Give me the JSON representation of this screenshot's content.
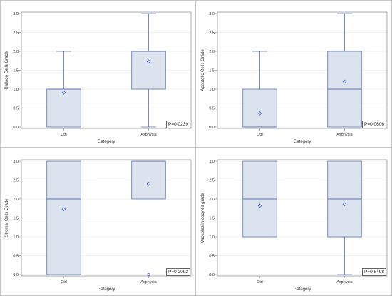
{
  "chart_data": [
    {
      "type": "box",
      "categories": [
        "Ctrl",
        "Asphyxia"
      ],
      "xlabel": "Gategory",
      "ylabel": "Balloon Cells Grade",
      "ylim": [
        0,
        3
      ],
      "yticks": [
        "0.0",
        "0.5",
        "1.0",
        "1.5",
        "2.0",
        "2.5",
        "3.0"
      ],
      "grid": true,
      "boxes": [
        {
          "category": "Ctrl",
          "min": 0,
          "q1": 0,
          "median": 1,
          "q3": 1,
          "max": 2,
          "mean": 0.91,
          "outliers": []
        },
        {
          "category": "Asphyxia",
          "min": 0,
          "q1": 1,
          "median": 2,
          "q3": 2,
          "max": 3,
          "mean": 1.73,
          "outliers": []
        }
      ],
      "annotation": "P=0.0239"
    },
    {
      "type": "box",
      "categories": [
        "Ctrl",
        "Asphyxia"
      ],
      "xlabel": "Gategory",
      "ylabel": "Apoptotic Cells Grade",
      "ylim": [
        0,
        3
      ],
      "yticks": [
        "0.0",
        "0.5",
        "1.0",
        "1.5",
        "2.0",
        "2.5",
        "3.0"
      ],
      "grid": true,
      "boxes": [
        {
          "category": "Ctrl",
          "min": 0,
          "q1": 0,
          "median": 0,
          "q3": 1,
          "max": 2,
          "mean": 0.36,
          "outliers": []
        },
        {
          "category": "Asphyxia",
          "min": 0,
          "q1": 0,
          "median": 1,
          "q3": 2,
          "max": 3,
          "mean": 1.2,
          "outliers": []
        }
      ],
      "annotation": "P=0.0606"
    },
    {
      "type": "box",
      "categories": [
        "Ctrl",
        "Asphyxia"
      ],
      "xlabel": "Gategory",
      "ylabel": "Stromal Cells Grade",
      "ylim": [
        0,
        3
      ],
      "yticks": [
        "0.0",
        "0.5",
        "1.0",
        "1.5",
        "2.0",
        "2.5",
        "3.0"
      ],
      "grid": true,
      "boxes": [
        {
          "category": "Ctrl",
          "min": 0,
          "q1": 0,
          "median": 2,
          "q3": 3,
          "max": 3,
          "mean": 1.73,
          "outliers": []
        },
        {
          "category": "Asphyxia",
          "min": 2,
          "q1": 2,
          "median": 3,
          "q3": 3,
          "max": 3,
          "mean": 2.4,
          "outliers": [
            0
          ]
        }
      ],
      "annotation": "P=0.2092"
    },
    {
      "type": "box",
      "categories": [
        "Ctrl",
        "Asphyxia"
      ],
      "xlabel": "Gategory",
      "ylabel": "Vacuoles in oocytes grade",
      "ylim": [
        0,
        3
      ],
      "yticks": [
        "0.0",
        "0.5",
        "1.0",
        "1.5",
        "2.0",
        "2.5",
        "3.0"
      ],
      "grid": true,
      "boxes": [
        {
          "category": "Ctrl",
          "min": 1,
          "q1": 1,
          "median": 2,
          "q3": 3,
          "max": 3,
          "mean": 1.82,
          "outliers": []
        },
        {
          "category": "Asphyxia",
          "min": 0,
          "q1": 1,
          "median": 2,
          "q3": 3,
          "max": 3,
          "mean": 1.86,
          "outliers": []
        }
      ],
      "annotation": "P=0.8498"
    }
  ],
  "colors": {
    "box_fill": "#dde3ee",
    "box_stroke": "#5a72b5",
    "mean_marker": "#4a63c9",
    "grid": "#e6e6e6",
    "frame": "#8c8c8c"
  }
}
